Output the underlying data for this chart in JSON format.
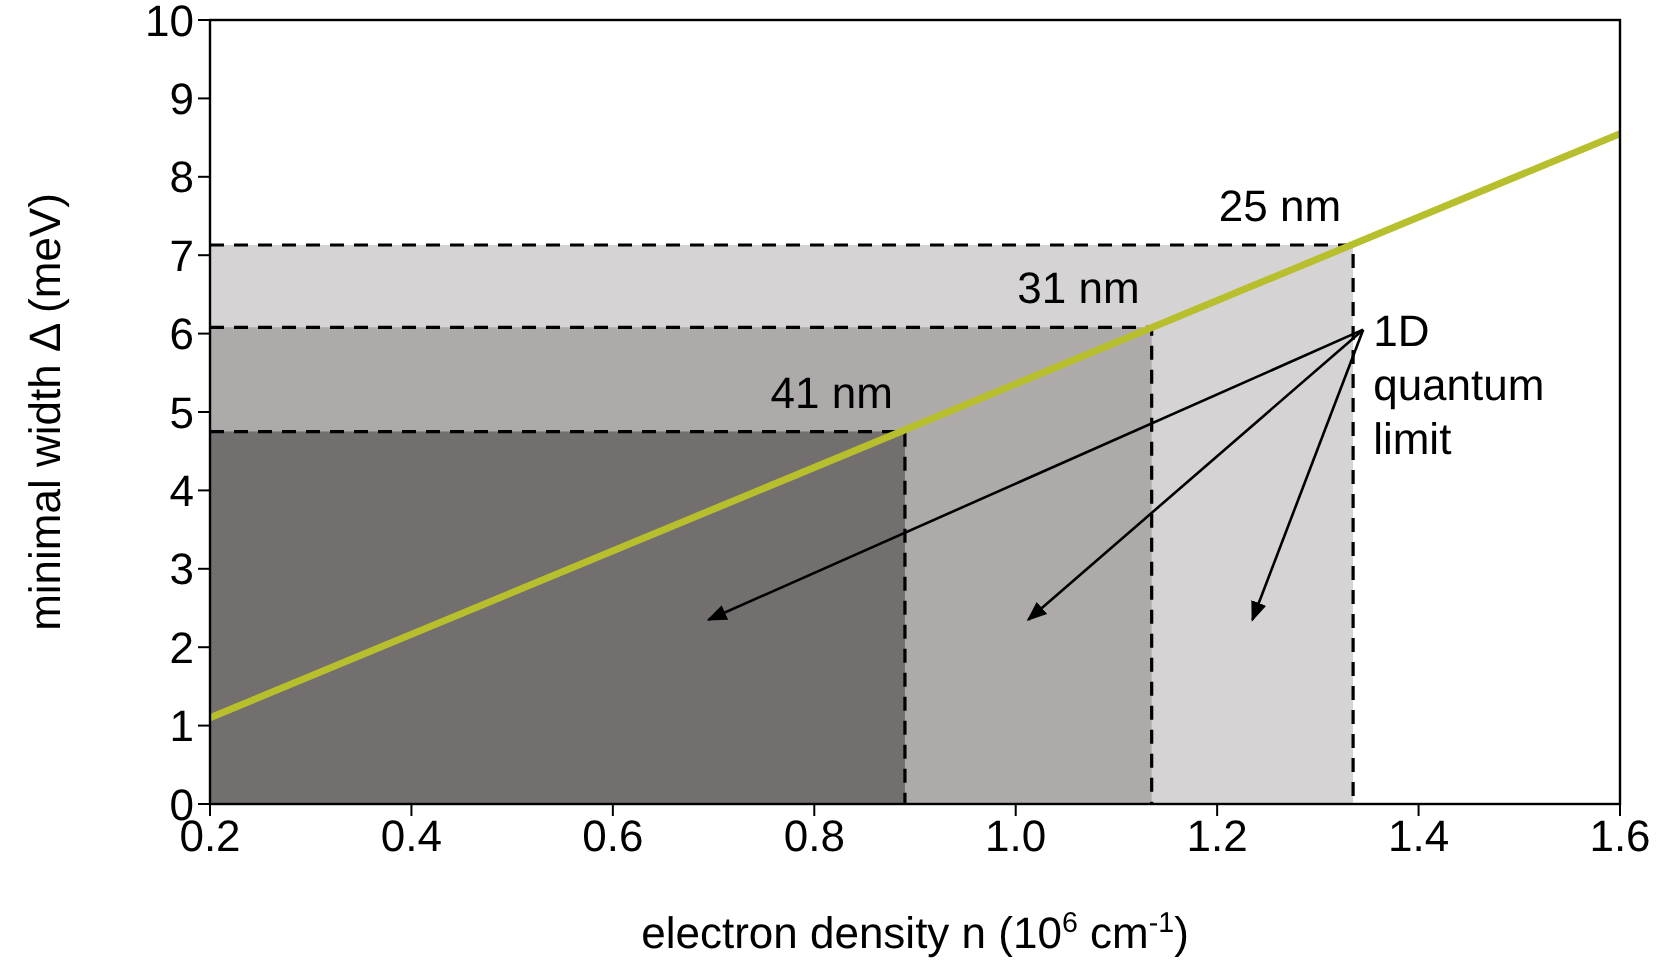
{
  "chart_data": {
    "type": "line",
    "xlabel": "electron density n (10$^{6}$ cm$^{-1}$)",
    "ylabel": "minimal width Δ (meV)",
    "xlim": [
      0.2,
      1.6
    ],
    "xticks": [
      {
        "value": 0.2,
        "label": "0.2"
      },
      {
        "value": 0.4,
        "label": "0.4"
      },
      {
        "value": 0.6,
        "label": "0.6"
      },
      {
        "value": 0.8,
        "label": "0.8"
      },
      {
        "value": 1.0,
        "label": "1.0"
      },
      {
        "value": 1.2,
        "label": "1.2"
      },
      {
        "value": 1.4,
        "label": "1.4"
      },
      {
        "value": 1.6,
        "label": "1.6"
      }
    ],
    "ylim": [
      0,
      10
    ],
    "yticks": [
      0,
      1,
      2,
      3,
      4,
      5,
      6,
      7,
      8,
      9,
      10
    ],
    "series": [
      {
        "type": "area",
        "color": "#d5d3d3",
        "line_style": "dashed",
        "x": [
          0.2,
          1.335,
          1.335
        ],
        "values": [
          7.13,
          7.13,
          0
        ]
      },
      {
        "type": "area",
        "color": "#adaaa9",
        "line_style": "dashed",
        "x": [
          0.2,
          1.135,
          1.135
        ],
        "values": [
          6.08,
          6.08,
          0
        ]
      },
      {
        "type": "area",
        "color": "#726f6e",
        "line_style": "dashed",
        "x": [
          0.2,
          0.89,
          0.89
        ],
        "values": [
          4.75,
          4.75,
          0
        ]
      },
      {
        "color": "#b7bf2c",
        "line_style": "solid",
        "x": [
          0.2,
          1.6
        ],
        "values": [
          1.1,
          8.55
        ]
      }
    ],
    "annotations": [
      {
        "text": "41 nm",
        "x": 0.89,
        "y": 4.75
      },
      {
        "text": "31 nm",
        "x": 1.135,
        "y": 6.08
      },
      {
        "text": "25 nm",
        "x": 1.335,
        "y": 7.13
      },
      "1D quantum limit"
    ]
  }
}
